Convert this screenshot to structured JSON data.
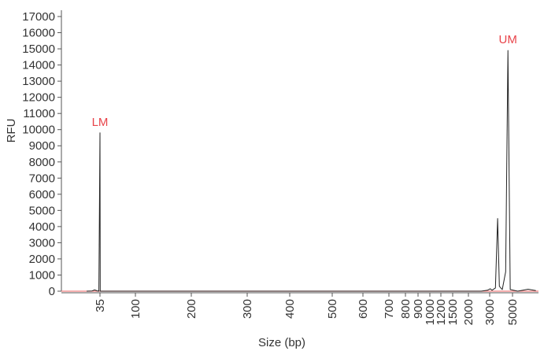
{
  "chart_data": {
    "type": "line",
    "title": "",
    "xlabel": "Size (bp)",
    "ylabel": "RFU",
    "ylim": [
      0,
      17000
    ],
    "y_ticks": [
      "0",
      "1000",
      "2000",
      "3000",
      "4000",
      "5000",
      "6000",
      "7000",
      "8000",
      "9000",
      "10000",
      "11000",
      "12000",
      "13000",
      "14000",
      "15000",
      "16000",
      "17000"
    ],
    "x_ticks": [
      "35",
      "100",
      "200",
      "300",
      "400",
      "500",
      "600",
      "700",
      "800",
      "900",
      "1000",
      "1200",
      "1500",
      "2000",
      "3000",
      "5000"
    ],
    "grid": false,
    "legend": "none",
    "colors": {
      "trace": "#222222",
      "marker": "#e8444a",
      "baseline": "#f08080",
      "axis": "#555555"
    },
    "series": [
      {
        "values_note": "",
        "points": [
          [
            30,
            0
          ],
          [
            32,
            15
          ],
          [
            33,
            80
          ],
          [
            34,
            20
          ],
          [
            34.6,
            0
          ],
          [
            35,
            9800
          ],
          [
            35.4,
            0
          ],
          [
            50,
            0
          ],
          [
            100,
            0
          ],
          [
            200,
            0
          ],
          [
            500,
            0
          ],
          [
            1000,
            0
          ],
          [
            1500,
            0
          ],
          [
            2000,
            0
          ],
          [
            2600,
            0
          ],
          [
            2900,
            60
          ],
          [
            3050,
            150
          ],
          [
            3200,
            60
          ],
          [
            3500,
            200
          ],
          [
            3700,
            4500
          ],
          [
            3850,
            300
          ],
          [
            4100,
            100
          ],
          [
            4400,
            1200
          ],
          [
            4600,
            14900
          ],
          [
            4800,
            100
          ],
          [
            5200,
            0
          ],
          [
            5600,
            120
          ],
          [
            5900,
            40
          ]
        ]
      }
    ],
    "annotations": [
      {
        "text": "LM",
        "x": 35,
        "y": 9800
      },
      {
        "text": "UM",
        "x": 4600,
        "y": 14900
      }
    ]
  }
}
